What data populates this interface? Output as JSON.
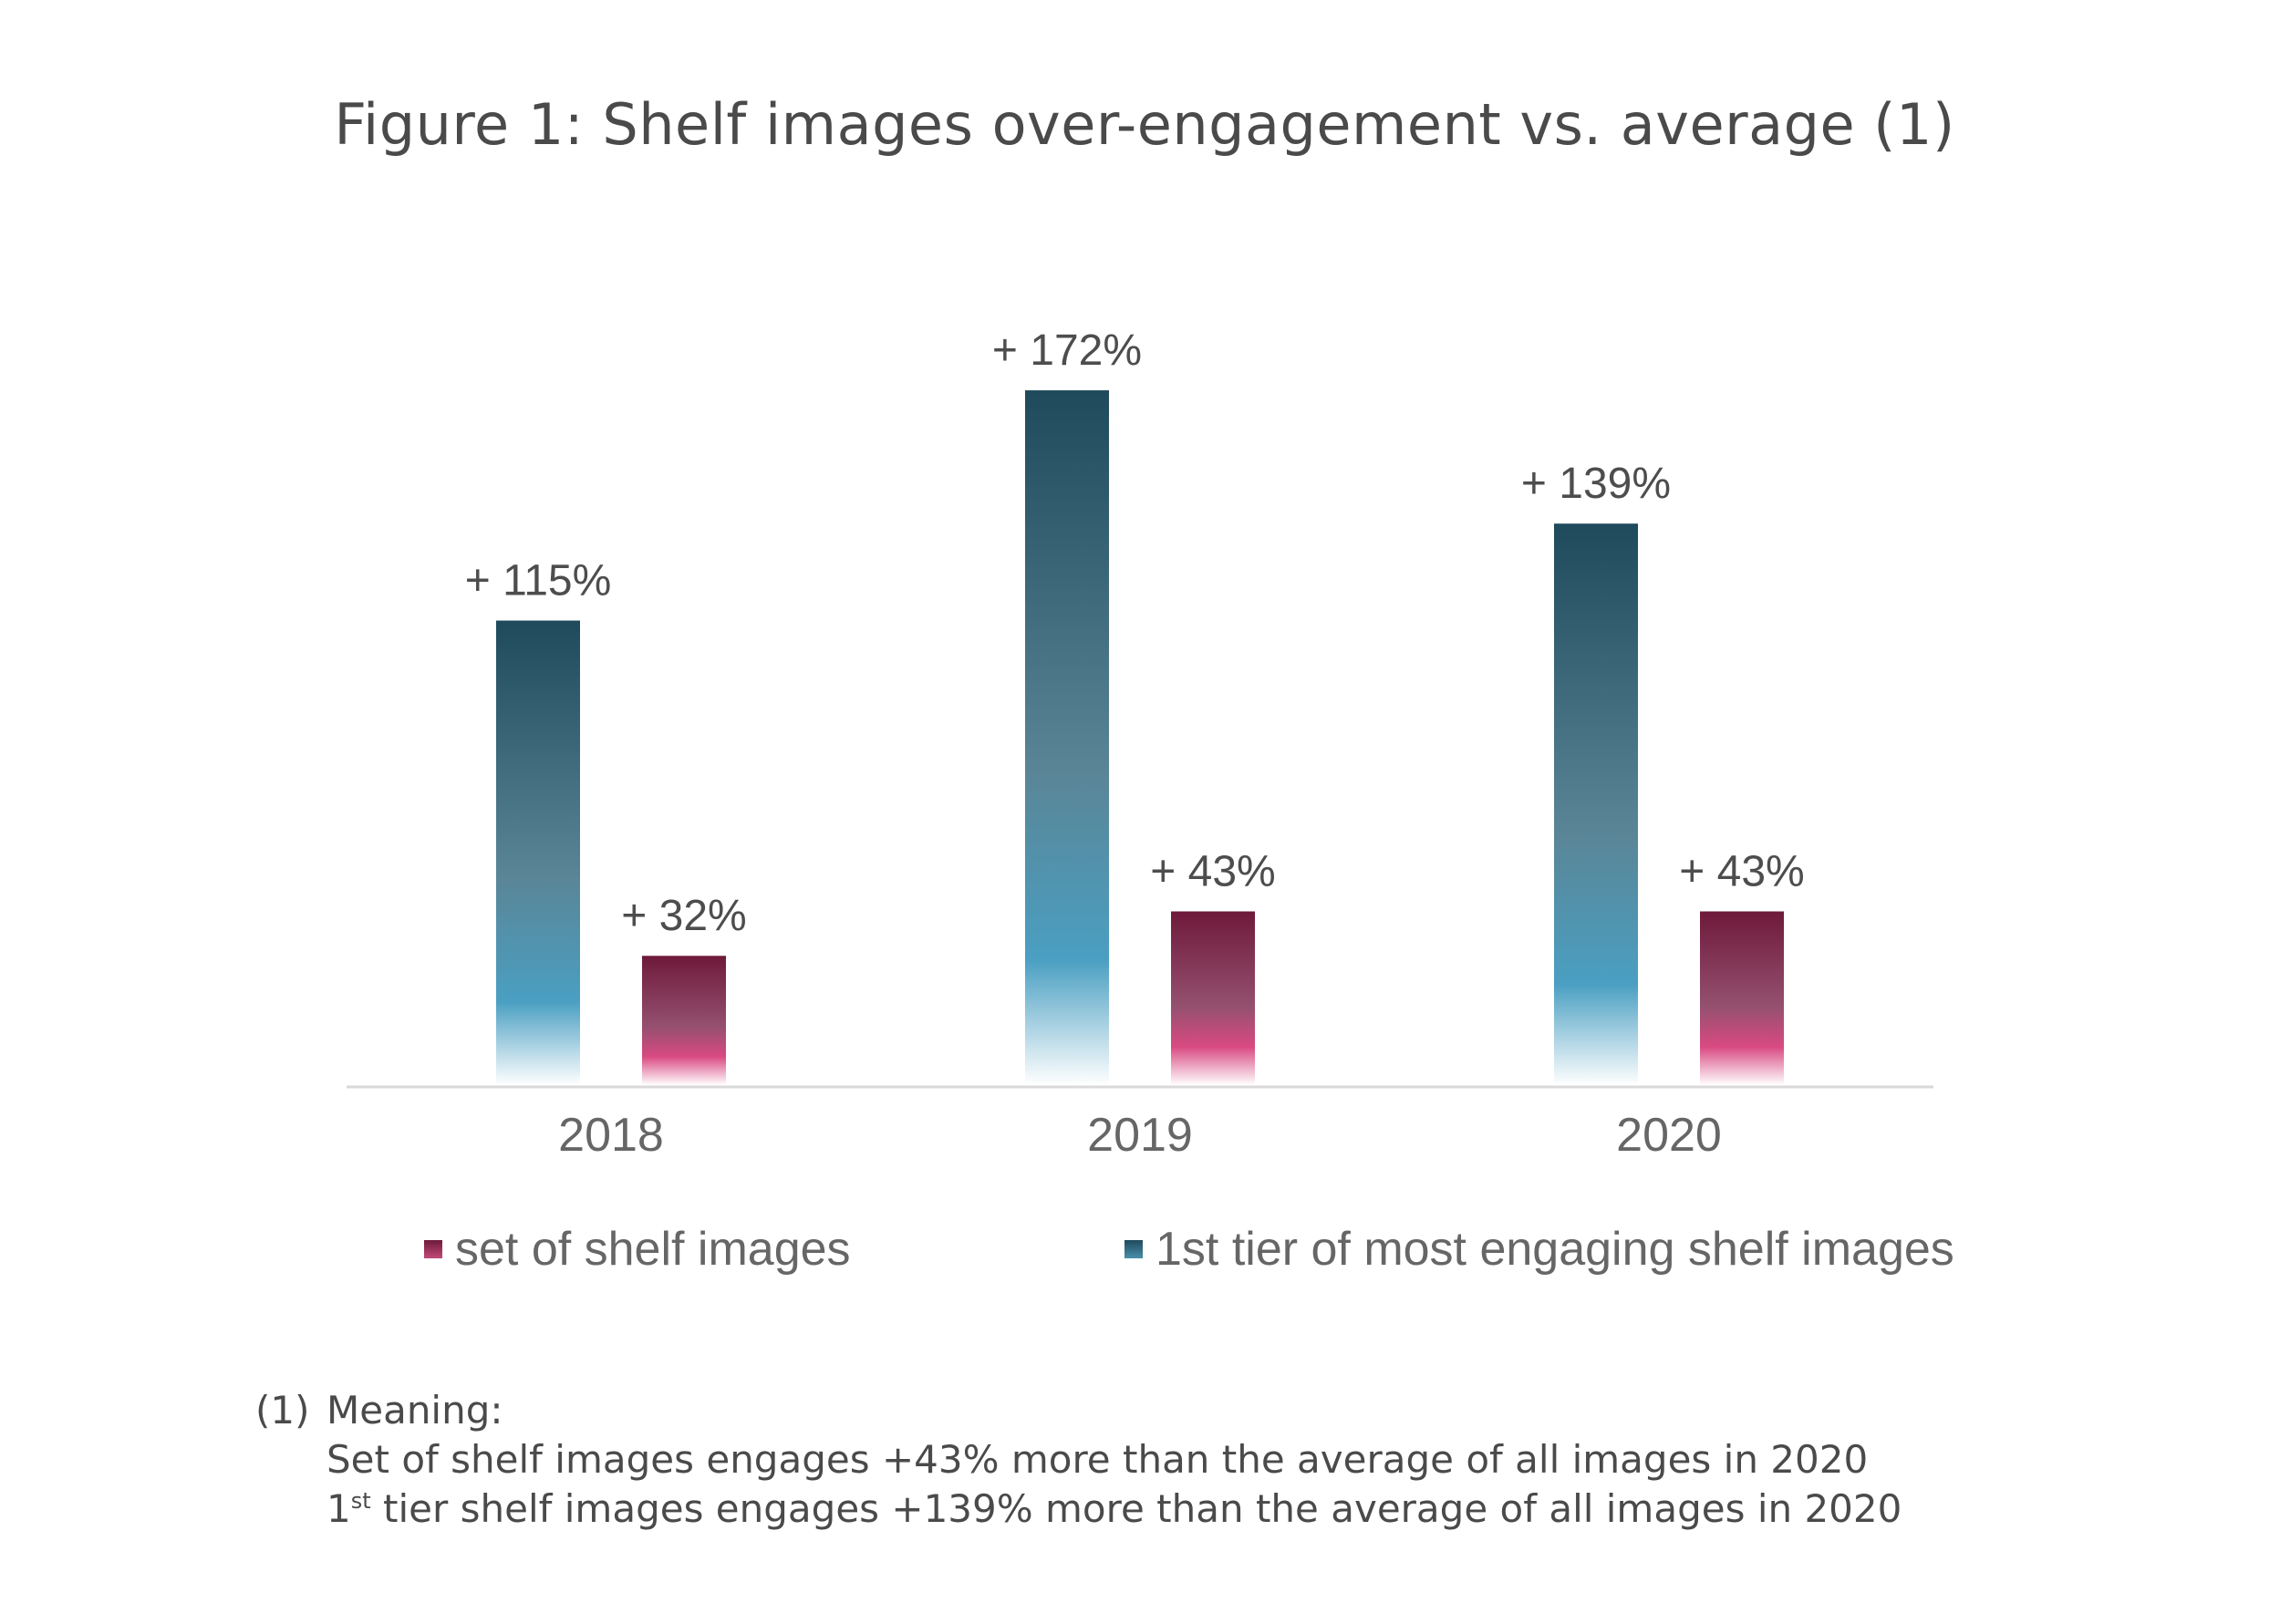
{
  "figure": {
    "title": "Figure 1: Shelf images over-engagement vs. average (1)"
  },
  "chart_data": {
    "type": "bar",
    "categories": [
      "2018",
      "2019",
      "2020"
    ],
    "series": [
      {
        "name": "1st tier of most engaging shelf images",
        "values": [
          115,
          172,
          139
        ],
        "labels": [
          "+ 115%",
          "+ 172%",
          "+ 139%"
        ],
        "color_top": "#1f4a5c",
        "color_mid": "#4a9fc2",
        "color_bottom": "#ffffff"
      },
      {
        "name": "set of shelf images",
        "values": [
          32,
          43,
          43
        ],
        "labels": [
          "+ 32%",
          "+ 43%",
          "+ 43%"
        ],
        "color_top": "#6e1a3a",
        "color_mid": "#d94a82",
        "color_bottom": "#ffffff"
      }
    ],
    "title": "Figure 1: Shelf images over-engagement vs. average (1)",
    "xlabel": "",
    "ylabel": "",
    "ylim": [
      0,
      180
    ],
    "grid": false,
    "legend_position": "bottom"
  },
  "legend": [
    {
      "label": "set of shelf images",
      "color": "#8a2a4f"
    },
    {
      "label": "1st tier of most engaging shelf images",
      "color": "#2f5f74"
    }
  ],
  "footnote": {
    "number": "(1)",
    "heading": "Meaning:",
    "line1": "Set of shelf images engages +43% more than the average of all images in 2020",
    "line2_pre": "1",
    "line2_sup": "st",
    "line2_post": " tier shelf images engages +139% more than the average of all images in 2020"
  }
}
